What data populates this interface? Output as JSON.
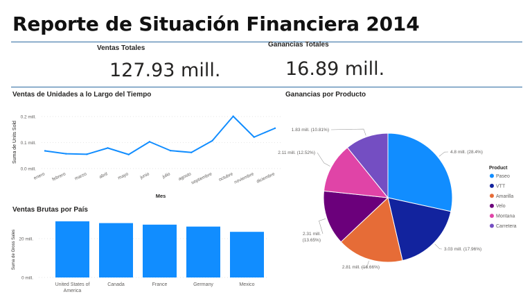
{
  "report": {
    "title": "Reporte de Situación Financiera 2014",
    "kpis": [
      {
        "label": "Ventas Totales",
        "value": "127.93 mill."
      },
      {
        "label": "Ganancias Totales",
        "value": "16.89 mill."
      }
    ]
  },
  "colors": {
    "divider": "#2b6aa0",
    "primary": "#118dff",
    "gridline": "#e6e6e6",
    "axis_text": "#605e5c"
  },
  "chart_data": [
    {
      "id": "line",
      "type": "line",
      "title": "Ventas de Unidades a lo Largo del Tiempo",
      "xlabel": "Mes",
      "ylabel": "Suma de Units Sold",
      "categories": [
        "enero",
        "febrero",
        "marzo",
        "abril",
        "mayo",
        "junio",
        "julio",
        "agosto",
        "septiembre",
        "octubre",
        "noviembre",
        "diciembre"
      ],
      "values": [
        0.068,
        0.057,
        0.055,
        0.079,
        0.054,
        0.103,
        0.069,
        0.062,
        0.107,
        0.201,
        0.121,
        0.155
      ],
      "ylim": [
        0,
        0.2
      ],
      "yticks": [
        0,
        0.1,
        0.2
      ],
      "ytick_labels": [
        "0.0 mill.",
        "0.1 mill.",
        "0.2 mill."
      ],
      "grid": true,
      "color": "#118dff"
    },
    {
      "id": "bar",
      "type": "bar",
      "title": "Ventas Brutas por País",
      "xlabel": "",
      "ylabel": "Suma de Gross Sales",
      "categories": [
        "United States of America",
        "Canada",
        "France",
        "Germany",
        "Mexico"
      ],
      "values": [
        28.9,
        28.0,
        27.2,
        26.2,
        23.5
      ],
      "ylim": [
        0,
        30
      ],
      "yticks": [
        0,
        20
      ],
      "ytick_labels": [
        "0 mill.",
        "20 mill."
      ],
      "grid": true,
      "color": "#118dff"
    },
    {
      "id": "pie",
      "type": "pie",
      "title": "Ganancias por Producto",
      "legend_title": "Product",
      "legend_position": "right",
      "slices": [
        {
          "label": "Paseo",
          "value": 4.8,
          "percent": 28.4,
          "data_label": "4.8 mill. (28.4%)",
          "color": "#118dff"
        },
        {
          "label": "VTT",
          "value": 3.03,
          "percent": 17.96,
          "data_label": "3.03 mill. (17.96%)",
          "color": "#12239e"
        },
        {
          "label": "Amarilla",
          "value": 2.81,
          "percent": 16.66,
          "data_label": "2.81 mill. (16.66%)",
          "color": "#e66c37"
        },
        {
          "label": "Velo",
          "value": 2.31,
          "percent": 13.65,
          "data_label": "2.31 mill. (13.65%)",
          "color": "#6b007b"
        },
        {
          "label": "Montana",
          "value": 2.11,
          "percent": 12.52,
          "data_label": "2.11 mill. (12.52%)",
          "color": "#e044a7"
        },
        {
          "label": "Carretera",
          "value": 1.83,
          "percent": 10.81,
          "data_label": "1.83 mill. (10.81%)",
          "color": "#744ec2"
        }
      ]
    }
  ]
}
